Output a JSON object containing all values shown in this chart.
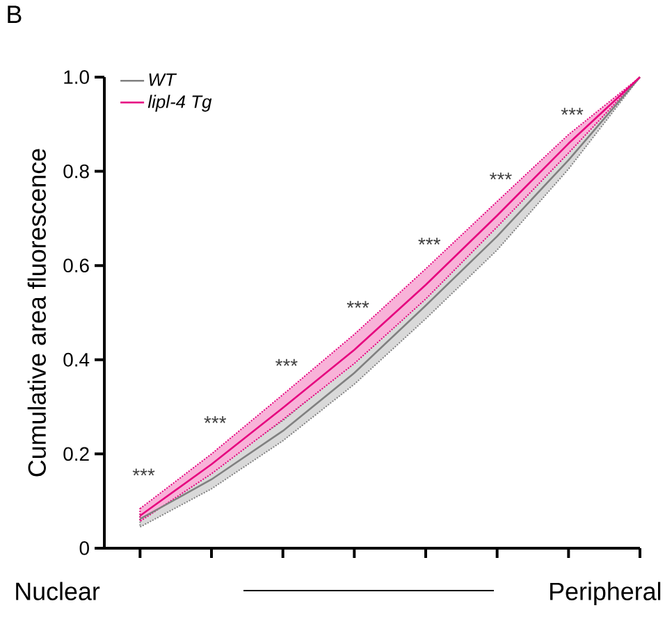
{
  "chart_data": {
    "type": "line",
    "title": "B",
    "xlabel": "Nuclear",
    "ylabel": "Cumulative area fluorescence",
    "categories": [
      null,
      null,
      null,
      null,
      null,
      null,
      null,
      null
    ],
    "ylim": [
      0,
      1
    ],
    "yticks": [
      {
        "value": 0,
        "label": "0"
      },
      {
        "value": 0.2,
        "label": "0.2"
      },
      {
        "value": 0.4,
        "label": "0.4"
      },
      {
        "value": 0.6,
        "label": "0.6"
      },
      {
        "value": 0.8,
        "label": "0.8"
      },
      {
        "value": 1,
        "label": "1.0"
      }
    ],
    "series": [
      {
        "name": "WT",
        "color": "#808080",
        "values": [
          0.062,
          0.146,
          0.249,
          0.372,
          0.515,
          0.662,
          0.824,
          1.0
        ],
        "lower": [
          0.045,
          0.126,
          0.228,
          0.348,
          0.487,
          0.633,
          0.805,
          1.0
        ],
        "upper": [
          0.072,
          0.166,
          0.271,
          0.397,
          0.539,
          0.687,
          0.844,
          1.0
        ]
      },
      {
        "name": "lipl-4 Tg",
        "color": "#e6007e",
        "values": [
          0.069,
          0.178,
          0.298,
          0.421,
          0.559,
          0.706,
          0.859,
          1.0
        ],
        "lower": [
          0.057,
          0.158,
          0.273,
          0.392,
          0.529,
          0.682,
          0.839,
          1.0
        ],
        "upper": [
          0.084,
          0.2,
          0.326,
          0.454,
          0.593,
          0.736,
          0.878,
          1.0
        ]
      }
    ],
    "annotations": [
      "Peripheral",
      "***",
      "***",
      "***",
      "***",
      "***",
      "***",
      "***"
    ],
    "legend": "top left",
    "grid": false,
    "marker": "none",
    "line_style": "solid"
  }
}
